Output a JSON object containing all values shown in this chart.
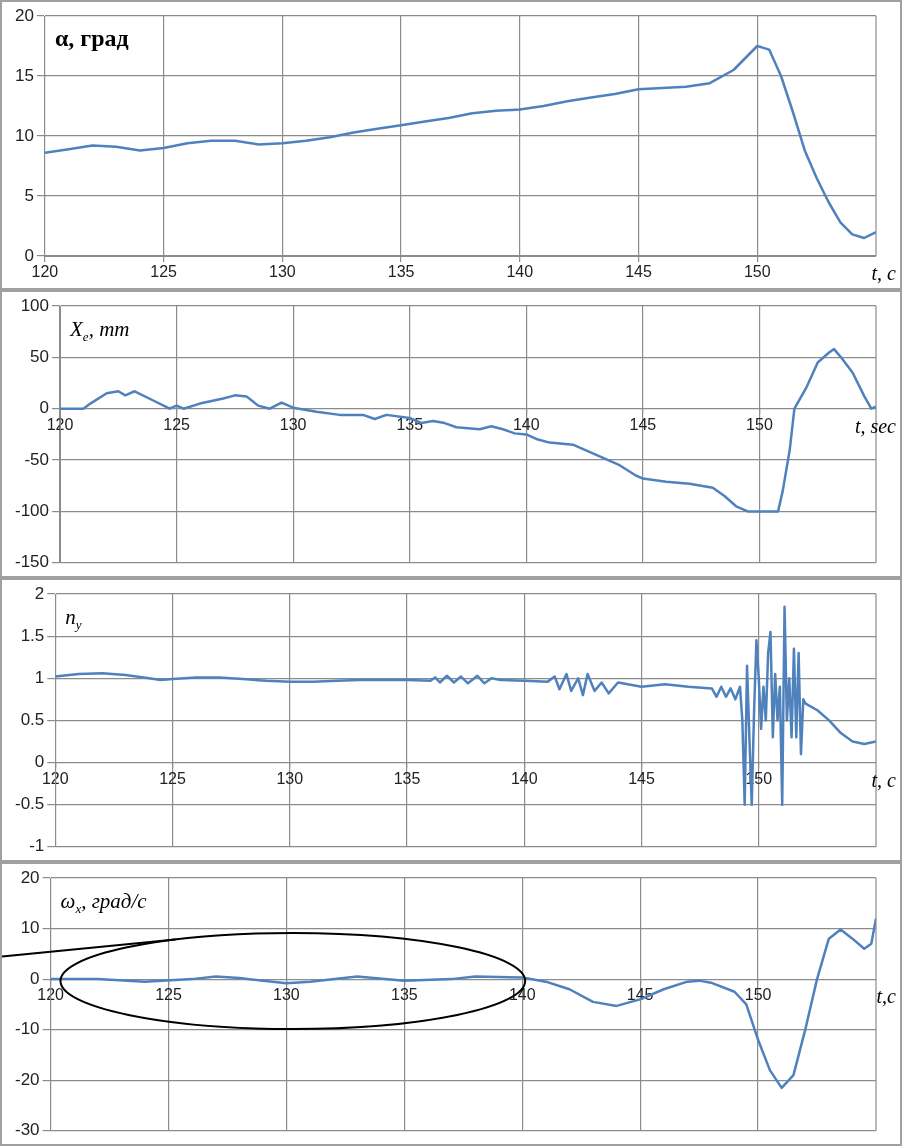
{
  "chart_data": [
    {
      "type": "line",
      "ylabel": "α, град",
      "xlabel": "t, с",
      "xlim": [
        120,
        155
      ],
      "xticks": [
        120,
        125,
        130,
        135,
        140,
        145,
        150
      ],
      "ylim": [
        0,
        20
      ],
      "yticks": [
        0,
        5,
        10,
        15,
        20
      ],
      "grid": true,
      "series": [
        {
          "color": "#4f81bd",
          "x": [
            120,
            121,
            122,
            123,
            124,
            125,
            126,
            127,
            128,
            129,
            130,
            131,
            132,
            133,
            134,
            135,
            136,
            137,
            138,
            139,
            140,
            141,
            142,
            143,
            144,
            145,
            146,
            147,
            148,
            149,
            149.5,
            150,
            150.5,
            151,
            151.5,
            152,
            152.5,
            153,
            153.5,
            154,
            154.5,
            155
          ],
          "values": [
            8.6,
            8.9,
            9.2,
            9.1,
            8.8,
            9.0,
            9.4,
            9.6,
            9.6,
            9.3,
            9.4,
            9.6,
            9.9,
            10.3,
            10.6,
            10.9,
            11.2,
            11.5,
            11.9,
            12.1,
            12.2,
            12.5,
            12.9,
            13.2,
            13.5,
            13.9,
            14.0,
            14.1,
            14.4,
            15.5,
            16.5,
            17.5,
            17.2,
            15.0,
            12.0,
            8.8,
            6.5,
            4.5,
            2.8,
            1.8,
            1.5,
            2.0
          ]
        }
      ]
    },
    {
      "type": "line",
      "ylabel": "X$_{e}$, mm",
      "xlabel": "t, sec",
      "xlim": [
        120,
        155
      ],
      "xticks": [
        120,
        125,
        130,
        135,
        140,
        145,
        150
      ],
      "ylim": [
        -150,
        100
      ],
      "yticks": [
        -150,
        -100,
        -50,
        0,
        50,
        100
      ],
      "grid": true,
      "series": [
        {
          "color": "#4f81bd",
          "x": [
            120,
            121,
            121.3,
            122,
            122.5,
            122.8,
            123.2,
            124,
            124.7,
            125,
            125.3,
            126,
            127,
            127.5,
            128,
            128.5,
            129,
            129.5,
            130,
            131,
            132,
            133,
            133.5,
            134,
            135,
            135.5,
            136,
            136.5,
            137,
            138,
            138.5,
            139,
            139.5,
            140,
            140.5,
            141,
            142,
            143,
            144,
            144.7,
            145,
            146,
            147,
            148,
            148.5,
            149,
            149.5,
            150,
            150.8,
            151,
            151.3,
            151.5,
            152,
            152.5,
            153,
            153.2,
            153.5,
            154,
            154.5,
            154.8,
            155
          ],
          "values": [
            0,
            0,
            5,
            15,
            17,
            13,
            17,
            8,
            0,
            3,
            0,
            5,
            10,
            13,
            12,
            3,
            0,
            6,
            1,
            -3,
            -6,
            -6,
            -10,
            -6,
            -9,
            -14,
            -12,
            -14,
            -18,
            -20,
            -17,
            -20,
            -24,
            -25,
            -30,
            -33,
            -35,
            -45,
            -55,
            -65,
            -68,
            -71,
            -73,
            -77,
            -85,
            -95,
            -100,
            -100,
            -100,
            -80,
            -40,
            0,
            20,
            45,
            55,
            58,
            50,
            35,
            12,
            0,
            2
          ]
        }
      ]
    },
    {
      "type": "line",
      "ylabel": "n$_{y}$",
      "xlabel": "t, с",
      "xlim": [
        120,
        155
      ],
      "xticks": [
        120,
        125,
        130,
        135,
        140,
        145,
        150
      ],
      "ylim": [
        -1,
        2
      ],
      "yticks": [
        -1,
        -0.5,
        0,
        0.5,
        1,
        1.5,
        2
      ],
      "grid": true,
      "series": [
        {
          "color": "#4f81bd",
          "x": [
            120,
            121,
            122,
            123,
            124,
            124.5,
            125,
            126,
            127,
            128,
            129,
            130,
            131,
            132,
            133,
            134,
            135,
            136,
            136.2,
            136.4,
            136.7,
            137,
            137.3,
            137.6,
            138,
            138.3,
            138.6,
            139,
            140,
            141,
            141.3,
            141.5,
            141.8,
            142,
            142.3,
            142.5,
            142.7,
            143,
            143.3,
            143.6,
            144,
            145,
            146,
            147,
            148,
            148.2,
            148.4,
            148.6,
            148.8,
            149,
            149.2,
            149.3,
            149.4,
            149.5,
            149.6,
            149.7,
            149.8,
            149.9,
            150,
            150.1,
            150.2,
            150.3,
            150.4,
            150.5,
            150.6,
            150.7,
            150.8,
            150.9,
            151,
            151.1,
            151.2,
            151.3,
            151.4,
            151.5,
            151.6,
            151.7,
            151.8,
            151.9,
            152,
            152.5,
            153,
            153.5,
            154,
            154.5,
            155
          ],
          "values": [
            1.02,
            1.05,
            1.06,
            1.04,
            1.0,
            0.98,
            0.99,
            1.01,
            1.01,
            0.99,
            0.97,
            0.96,
            0.96,
            0.97,
            0.98,
            0.98,
            0.98,
            0.97,
            1.01,
            0.95,
            1.03,
            0.95,
            1.02,
            0.94,
            1.03,
            0.94,
            1.0,
            0.98,
            0.97,
            0.96,
            1.02,
            0.87,
            1.05,
            0.85,
            1.0,
            0.8,
            1.05,
            0.85,
            0.95,
            0.82,
            0.95,
            0.9,
            0.93,
            0.9,
            0.88,
            0.78,
            0.9,
            0.78,
            0.88,
            0.75,
            0.9,
            0.5,
            -0.5,
            1.15,
            0.3,
            -0.5,
            0.6,
            1.45,
            1.0,
            0.4,
            0.9,
            0.5,
            1.3,
            1.55,
            0.3,
            1.05,
            0.5,
            0.9,
            -0.5,
            1.85,
            0.5,
            1.0,
            0.3,
            1.35,
            0.3,
            1.3,
            0.1,
            0.75,
            0.7,
            0.62,
            0.5,
            0.35,
            0.25,
            0.22,
            0.25
          ]
        }
      ]
    },
    {
      "type": "line",
      "ylabel": "ω$_{x}$, град/с",
      "xlabel": "t,с",
      "xlim": [
        120,
        155
      ],
      "xticks": [
        120,
        125,
        130,
        135,
        140,
        145,
        150
      ],
      "ylim": [
        -30,
        20
      ],
      "yticks": [
        -30,
        -20,
        -10,
        0,
        10,
        20
      ],
      "grid": true,
      "series": [
        {
          "color": "#4f81bd",
          "x": [
            120,
            122,
            124,
            126,
            127,
            128,
            130,
            131,
            133,
            135,
            137,
            138,
            140,
            141,
            142,
            143,
            144,
            145,
            146,
            147,
            147.5,
            148,
            149,
            149.5,
            150,
            150.5,
            151,
            151.5,
            152,
            152.5,
            153,
            153.5,
            154,
            154.5,
            154.8,
            155
          ],
          "values": [
            0,
            0,
            -0.5,
            0,
            0.5,
            0.2,
            -0.8,
            -0.5,
            0.5,
            -0.3,
            0,
            0.5,
            0.3,
            -0.5,
            -2,
            -4.5,
            -5.3,
            -4,
            -2,
            -0.5,
            -0.3,
            -0.7,
            -2.5,
            -5,
            -12,
            -18,
            -21.5,
            -19,
            -10,
            0,
            8,
            9.8,
            8,
            6,
            7,
            12
          ]
        }
      ]
    }
  ]
}
